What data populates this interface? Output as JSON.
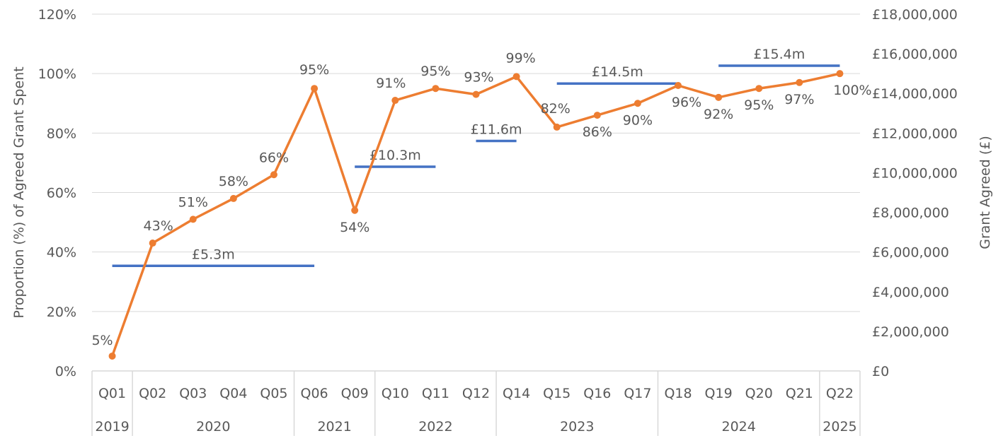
{
  "chart_data": {
    "type": "line",
    "title": "",
    "categories": [
      "Q01",
      "Q02",
      "Q03",
      "Q04",
      "Q05",
      "Q06",
      "Q09",
      "Q10",
      "Q11",
      "Q12",
      "Q14",
      "Q15",
      "Q16",
      "Q17",
      "Q18",
      "Q19",
      "Q20",
      "Q21",
      "Q22"
    ],
    "year_groups": [
      {
        "label": "2019",
        "from": "Q01",
        "to": "Q01"
      },
      {
        "label": "2020",
        "from": "Q02",
        "to": "Q05"
      },
      {
        "label": "2021",
        "from": "Q06",
        "to": "Q09"
      },
      {
        "label": "2022",
        "from": "Q10",
        "to": "Q12"
      },
      {
        "label": "2023",
        "from": "Q14",
        "to": "Q17"
      },
      {
        "label": "2024",
        "from": "Q18",
        "to": "Q21"
      },
      {
        "label": "2025",
        "from": "Q22",
        "to": "Q22"
      }
    ],
    "ylabel_left": "Proportion (%) of Agreed Grant Spent",
    "ylabel_right": "Grant Agreed (£)",
    "ylim_left": [
      0,
      120
    ],
    "yticks_left": [
      "0%",
      "20%",
      "40%",
      "60%",
      "80%",
      "100%",
      "120%"
    ],
    "ylim_right": [
      0,
      18000000
    ],
    "yticks_right": [
      "£0",
      "£2,000,000",
      "£4,000,000",
      "£6,000,000",
      "£8,000,000",
      "£10,000,000",
      "£12,000,000",
      "£14,000,000",
      "£16,000,000",
      "£18,000,000"
    ],
    "grid": true,
    "series": [
      {
        "axis": "left",
        "color": "#ED7D31",
        "values": [
          5,
          43,
          51,
          58,
          66,
          95,
          54,
          91,
          95,
          93,
          99,
          82,
          86,
          90,
          96,
          92,
          95,
          97,
          100
        ],
        "labels": [
          "5%",
          "43%",
          "51%",
          "58%",
          "66%",
          "95%",
          "54%",
          "91%",
          "95%",
          "93%",
          "99%",
          "82%",
          "86%",
          "90%",
          "96%",
          "92%",
          "95%",
          "97%",
          "100%"
        ]
      }
    ],
    "grant_segments": {
      "axis": "right",
      "color": "#4472C4",
      "items": [
        {
          "from": "Q01",
          "to": "Q06",
          "value": 5300000,
          "label": "£5.3m"
        },
        {
          "from": "Q09",
          "to": "Q11",
          "value": 10300000,
          "label": "£10.3m"
        },
        {
          "from": "Q12",
          "to": "Q14",
          "value": 11600000,
          "label": "£11.6m"
        },
        {
          "from": "Q15",
          "to": "Q18",
          "value": 14500000,
          "label": "£14.5m"
        },
        {
          "from": "Q19",
          "to": "Q22",
          "value": 15400000,
          "label": "£15.4m"
        }
      ]
    }
  }
}
